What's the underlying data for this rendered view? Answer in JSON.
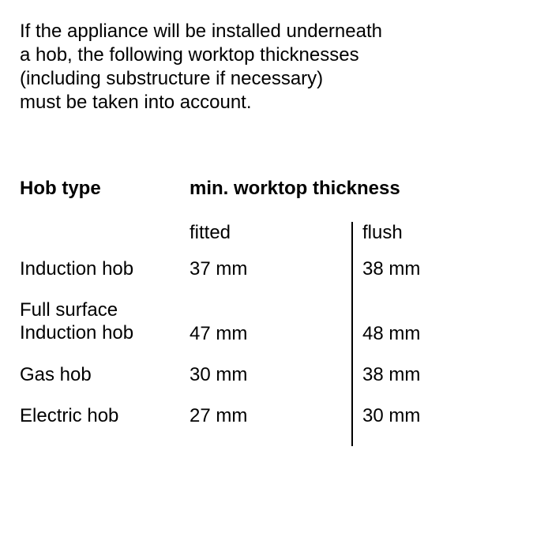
{
  "intro": {
    "line1": "If the appliance will be installed underneath",
    "line2": "a hob, the following worktop thicknesses",
    "line3": "(including substructure if necessary)",
    "line4": "must be taken into account."
  },
  "table": {
    "header_hobtype": "Hob type",
    "header_thickness": "min. worktop thickness",
    "sub_fitted": "fitted",
    "sub_flush": "flush",
    "rows": [
      {
        "label": "Induction hob",
        "fitted": "37 mm",
        "flush": "38 mm",
        "multiline": false
      },
      {
        "label_line1": "Full surface",
        "label_line2": "Induction hob",
        "fitted": "47 mm",
        "flush": "48 mm",
        "multiline": true
      },
      {
        "label": "Gas hob",
        "fitted": "30 mm",
        "flush": "38 mm",
        "multiline": false
      },
      {
        "label": "Electric hob",
        "fitted": "27 mm",
        "flush": "30 mm",
        "multiline": false
      }
    ]
  },
  "styling": {
    "background_color": "#ffffff",
    "text_color": "#000000",
    "font_family": "Arial",
    "intro_fontsize": 24,
    "header_fontsize": 24,
    "header_fontweight": "bold",
    "cell_fontsize": 24,
    "divider_color": "#000000",
    "divider_width": 2,
    "columns": {
      "col1_width": 215,
      "col2_width": 205,
      "col3_width": 200
    }
  }
}
